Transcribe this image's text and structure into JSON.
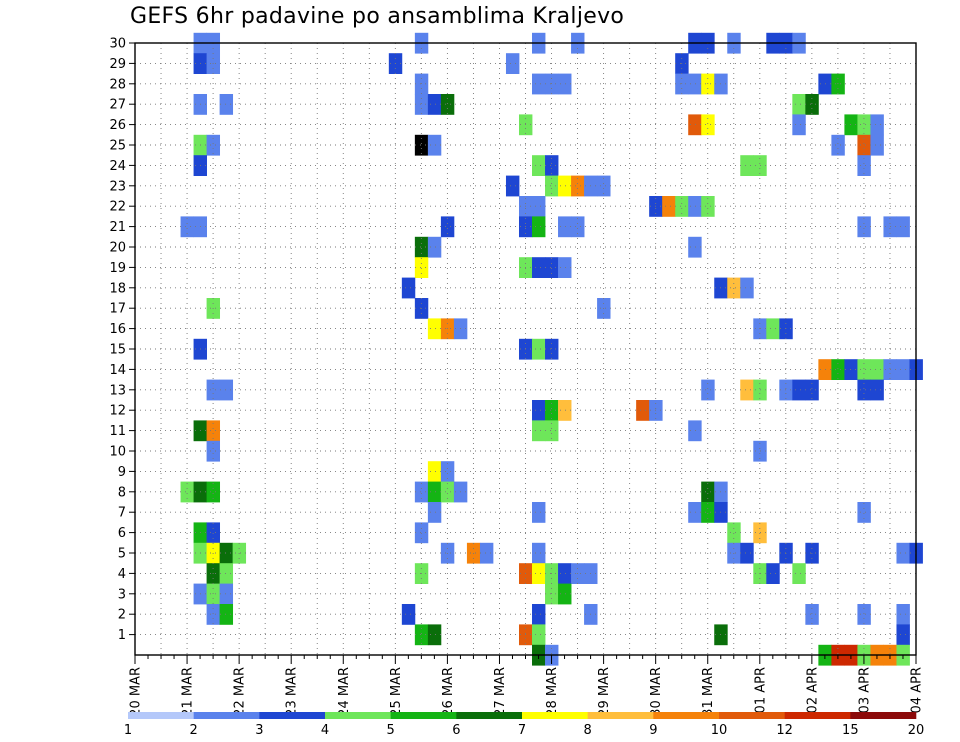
{
  "chart_data": {
    "type": "heatmap",
    "title": "GEFS 6hr padavine po ansamblima Kraljevo",
    "xlabel": "",
    "ylabel": "",
    "grid": true,
    "x_unit": "6-hour step from 20 MAR 00Z",
    "x_range": [
      0,
      60
    ],
    "y_range": [
      0,
      30
    ],
    "x_tick_labels": [
      "20 MAR",
      "21 MAR",
      "22 MAR",
      "23 MAR",
      "24 MAR",
      "25 MAR",
      "26 MAR",
      "27 MAR",
      "28 MAR",
      "29 MAR",
      "30 MAR",
      "31 MAR",
      "01 APR",
      "02 APR",
      "03 APR",
      "04 APR"
    ],
    "y_tick_labels": [
      "1",
      "2",
      "3",
      "4",
      "5",
      "6",
      "7",
      "8",
      "9",
      "10",
      "11",
      "12",
      "13",
      "14",
      "15",
      "16",
      "17",
      "18",
      "19",
      "20",
      "21",
      "22",
      "23",
      "24",
      "25",
      "26",
      "27",
      "28",
      "29",
      "30"
    ],
    "colorbar": {
      "labels": [
        "1",
        "2",
        "3",
        "4",
        "5",
        "6",
        "7",
        "8",
        "9",
        "10",
        "12",
        "15",
        "20"
      ],
      "colors": [
        "#b4c8fa",
        "#5a82ec",
        "#1e46d2",
        "#6ee65a",
        "#14b414",
        "#0a6e0a",
        "#ffff00",
        "#ffbe3c",
        "#f5820a",
        "#e15a0a",
        "#cd2800",
        "#8c0a0a"
      ]
    },
    "cells": [
      [
        5,
        30,
        1
      ],
      [
        6,
        30,
        1
      ],
      [
        22,
        30,
        1
      ],
      [
        31,
        30,
        1
      ],
      [
        34,
        30,
        1
      ],
      [
        43,
        30,
        2
      ],
      [
        44,
        30,
        2
      ],
      [
        46,
        30,
        1
      ],
      [
        49,
        30,
        2
      ],
      [
        50,
        30,
        2
      ],
      [
        51,
        30,
        1
      ],
      [
        5,
        29,
        2
      ],
      [
        6,
        29,
        1
      ],
      [
        20,
        29,
        2
      ],
      [
        29,
        29,
        1
      ],
      [
        42,
        29,
        2
      ],
      [
        22,
        28,
        1
      ],
      [
        31,
        28,
        1
      ],
      [
        32,
        28,
        1
      ],
      [
        33,
        28,
        1
      ],
      [
        42,
        28,
        1
      ],
      [
        43,
        28,
        1
      ],
      [
        44,
        28,
        6
      ],
      [
        45,
        28,
        1
      ],
      [
        53,
        28,
        2
      ],
      [
        54,
        28,
        4
      ],
      [
        5,
        27,
        1
      ],
      [
        7,
        27,
        1
      ],
      [
        22,
        27,
        1
      ],
      [
        23,
        27,
        2
      ],
      [
        24,
        27,
        5
      ],
      [
        51,
        27,
        3
      ],
      [
        52,
        27,
        5
      ],
      [
        30,
        26,
        3
      ],
      [
        43,
        26,
        9
      ],
      [
        44,
        26,
        6
      ],
      [
        51,
        26,
        1
      ],
      [
        55,
        26,
        4
      ],
      [
        56,
        26,
        3
      ],
      [
        57,
        26,
        1
      ],
      [
        5,
        25,
        3
      ],
      [
        6,
        25,
        1
      ],
      [
        22,
        25,
        12
      ],
      [
        23,
        25,
        1
      ],
      [
        54,
        25,
        1
      ],
      [
        56,
        25,
        9
      ],
      [
        57,
        25,
        1
      ],
      [
        5,
        24,
        2
      ],
      [
        31,
        24,
        3
      ],
      [
        32,
        24,
        2
      ],
      [
        47,
        24,
        3
      ],
      [
        48,
        24,
        3
      ],
      [
        56,
        24,
        1
      ],
      [
        29,
        23,
        2
      ],
      [
        32,
        23,
        3
      ],
      [
        33,
        23,
        6
      ],
      [
        34,
        23,
        8
      ],
      [
        35,
        23,
        1
      ],
      [
        36,
        23,
        1
      ],
      [
        30,
        22,
        1
      ],
      [
        31,
        22,
        1
      ],
      [
        40,
        22,
        2
      ],
      [
        41,
        22,
        8
      ],
      [
        42,
        22,
        3
      ],
      [
        43,
        22,
        1
      ],
      [
        44,
        22,
        3
      ],
      [
        4,
        21,
        1
      ],
      [
        5,
        21,
        1
      ],
      [
        24,
        21,
        2
      ],
      [
        30,
        21,
        2
      ],
      [
        31,
        21,
        4
      ],
      [
        33,
        21,
        1
      ],
      [
        34,
        21,
        1
      ],
      [
        56,
        21,
        1
      ],
      [
        58,
        21,
        1
      ],
      [
        59,
        21,
        1
      ],
      [
        22,
        20,
        5
      ],
      [
        23,
        20,
        1
      ],
      [
        43,
        20,
        1
      ],
      [
        22,
        19,
        6
      ],
      [
        30,
        19,
        3
      ],
      [
        31,
        19,
        2
      ],
      [
        32,
        19,
        2
      ],
      [
        33,
        19,
        1
      ],
      [
        21,
        18,
        2
      ],
      [
        45,
        18,
        2
      ],
      [
        46,
        18,
        7
      ],
      [
        47,
        18,
        1
      ],
      [
        6,
        17,
        3
      ],
      [
        22,
        17,
        2
      ],
      [
        36,
        17,
        1
      ],
      [
        23,
        16,
        6
      ],
      [
        24,
        16,
        8
      ],
      [
        25,
        16,
        1
      ],
      [
        48,
        16,
        1
      ],
      [
        49,
        16,
        3
      ],
      [
        50,
        16,
        2
      ],
      [
        5,
        15,
        2
      ],
      [
        30,
        15,
        2
      ],
      [
        31,
        15,
        3
      ],
      [
        32,
        15,
        2
      ],
      [
        53,
        14,
        8
      ],
      [
        54,
        14,
        4
      ],
      [
        55,
        14,
        2
      ],
      [
        56,
        14,
        3
      ],
      [
        57,
        14,
        3
      ],
      [
        58,
        14,
        1
      ],
      [
        59,
        14,
        1
      ],
      [
        60,
        14,
        2
      ],
      [
        6,
        13,
        1
      ],
      [
        7,
        13,
        1
      ],
      [
        44,
        13,
        1
      ],
      [
        47,
        13,
        7
      ],
      [
        48,
        13,
        3
      ],
      [
        50,
        13,
        1
      ],
      [
        51,
        13,
        2
      ],
      [
        52,
        13,
        2
      ],
      [
        56,
        13,
        2
      ],
      [
        57,
        13,
        2
      ],
      [
        31,
        12,
        2
      ],
      [
        32,
        12,
        4
      ],
      [
        33,
        12,
        7
      ],
      [
        39,
        12,
        9
      ],
      [
        40,
        12,
        1
      ],
      [
        5,
        11,
        5
      ],
      [
        6,
        11,
        8
      ],
      [
        31,
        11,
        3
      ],
      [
        32,
        11,
        3
      ],
      [
        43,
        11,
        1
      ],
      [
        6,
        10,
        1
      ],
      [
        48,
        10,
        1
      ],
      [
        23,
        9,
        6
      ],
      [
        24,
        9,
        1
      ],
      [
        4,
        8,
        3
      ],
      [
        5,
        8,
        5
      ],
      [
        6,
        8,
        4
      ],
      [
        22,
        8,
        1
      ],
      [
        23,
        8,
        4
      ],
      [
        24,
        8,
        3
      ],
      [
        25,
        8,
        1
      ],
      [
        44,
        8,
        5
      ],
      [
        45,
        8,
        1
      ],
      [
        23,
        7,
        1
      ],
      [
        31,
        7,
        1
      ],
      [
        43,
        7,
        1
      ],
      [
        44,
        7,
        4
      ],
      [
        45,
        7,
        2
      ],
      [
        56,
        7,
        1
      ],
      [
        5,
        6,
        4
      ],
      [
        6,
        6,
        2
      ],
      [
        22,
        6,
        1
      ],
      [
        46,
        6,
        3
      ],
      [
        48,
        6,
        7
      ],
      [
        5,
        5,
        3
      ],
      [
        6,
        5,
        6
      ],
      [
        7,
        5,
        5
      ],
      [
        8,
        5,
        3
      ],
      [
        24,
        5,
        1
      ],
      [
        26,
        5,
        8
      ],
      [
        27,
        5,
        1
      ],
      [
        31,
        5,
        1
      ],
      [
        46,
        5,
        1
      ],
      [
        47,
        5,
        2
      ],
      [
        50,
        5,
        2
      ],
      [
        52,
        5,
        2
      ],
      [
        59,
        5,
        1
      ],
      [
        60,
        5,
        2
      ],
      [
        6,
        4,
        5
      ],
      [
        7,
        4,
        3
      ],
      [
        22,
        4,
        3
      ],
      [
        30,
        4,
        9
      ],
      [
        31,
        4,
        6
      ],
      [
        32,
        4,
        3
      ],
      [
        33,
        4,
        2
      ],
      [
        34,
        4,
        1
      ],
      [
        35,
        4,
        1
      ],
      [
        48,
        4,
        3
      ],
      [
        49,
        4,
        2
      ],
      [
        51,
        4,
        3
      ],
      [
        5,
        3,
        1
      ],
      [
        6,
        3,
        3
      ],
      [
        7,
        3,
        1
      ],
      [
        32,
        3,
        3
      ],
      [
        33,
        3,
        4
      ],
      [
        6,
        2,
        1
      ],
      [
        7,
        2,
        4
      ],
      [
        21,
        2,
        2
      ],
      [
        31,
        2,
        2
      ],
      [
        35,
        2,
        1
      ],
      [
        52,
        2,
        1
      ],
      [
        56,
        2,
        1
      ],
      [
        59,
        2,
        1
      ],
      [
        22,
        1,
        4
      ],
      [
        23,
        1,
        5
      ],
      [
        30,
        1,
        9
      ],
      [
        31,
        1,
        3
      ],
      [
        45,
        1,
        5
      ],
      [
        59,
        1,
        2
      ],
      [
        31,
        0,
        5
      ],
      [
        32,
        0,
        1
      ],
      [
        53,
        0,
        4
      ],
      [
        54,
        0,
        10
      ],
      [
        55,
        0,
        10
      ],
      [
        56,
        0,
        3
      ],
      [
        57,
        0,
        8
      ],
      [
        58,
        0,
        8
      ],
      [
        59,
        0,
        3
      ]
    ]
  }
}
